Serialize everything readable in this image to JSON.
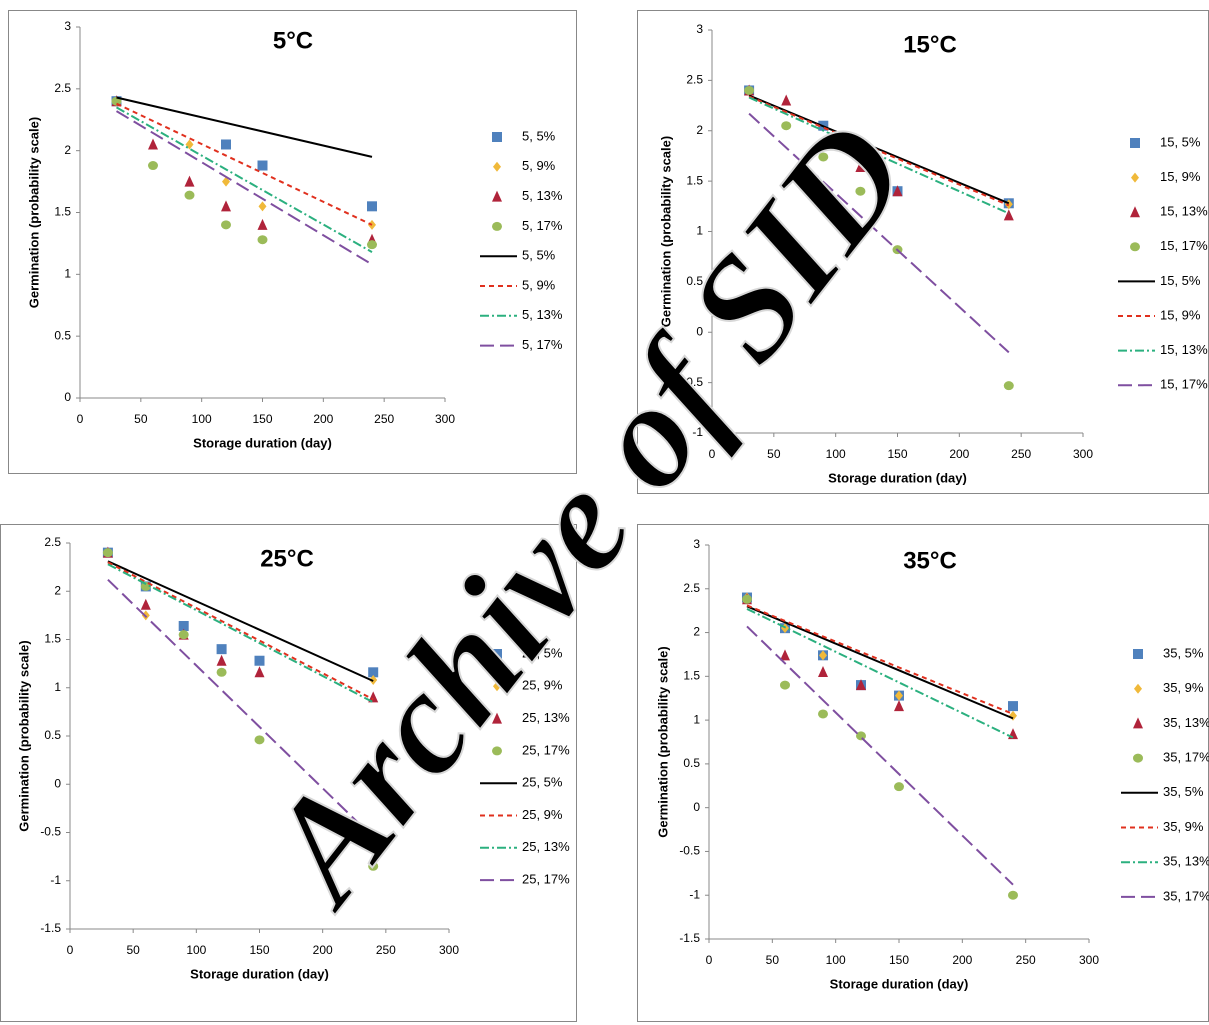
{
  "watermark": "Archive of SID",
  "chart_data": [
    {
      "type": "scatter",
      "title": "5°C",
      "x_label": "Storage duration (day)",
      "y_label": "Germination (probability scale)",
      "xlim": [
        0,
        300
      ],
      "xticks": [
        0,
        50,
        100,
        150,
        200,
        250,
        300
      ],
      "ylim": [
        0,
        3
      ],
      "yticks": [
        0,
        0.5,
        1,
        1.5,
        2,
        2.5,
        3
      ],
      "x": [
        30,
        60,
        90,
        120,
        150,
        240
      ],
      "series": [
        {
          "name": "5, 5%",
          "color": "#4f81bd",
          "marker": "square",
          "values": [
            2.4,
            null,
            null,
            2.05,
            1.88,
            1.55
          ]
        },
        {
          "name": "5, 9%",
          "color": "#f0b93a",
          "marker": "diamond",
          "values": [
            2.4,
            null,
            2.05,
            1.75,
            1.55,
            1.4
          ]
        },
        {
          "name": "5, 13%",
          "color": "#b0233a",
          "marker": "triangle",
          "values": [
            2.4,
            2.05,
            1.75,
            1.55,
            1.4,
            1.28
          ]
        },
        {
          "name": "5, 17%",
          "color": "#9bbb59",
          "marker": "circle",
          "values": [
            2.4,
            1.88,
            1.64,
            1.4,
            1.28,
            1.24
          ]
        },
        {
          "name": "5, 5%",
          "color": "#000000",
          "line": "solid",
          "x": [
            30,
            240
          ],
          "values": [
            2.43,
            1.95
          ]
        },
        {
          "name": "5, 9%",
          "color": "#e0301e",
          "line": "dash",
          "x": [
            30,
            240
          ],
          "values": [
            2.38,
            1.4
          ]
        },
        {
          "name": "5, 13%",
          "color": "#2bb07f",
          "line": "dashdot",
          "x": [
            30,
            240
          ],
          "values": [
            2.35,
            1.18
          ]
        },
        {
          "name": "5, 17%",
          "color": "#7f4fa0",
          "line": "longdash",
          "x": [
            30,
            240
          ],
          "values": [
            2.32,
            1.08
          ]
        }
      ]
    },
    {
      "type": "scatter",
      "title": "15°C",
      "x_label": "Storage duration (day)",
      "y_label": "Germination (probability scale)",
      "xlim": [
        0,
        300
      ],
      "xticks": [
        0,
        50,
        100,
        150,
        200,
        250,
        300
      ],
      "ylim": [
        -1,
        3
      ],
      "yticks": [
        -1,
        -0.5,
        0,
        0.5,
        1,
        1.5,
        2,
        2.5,
        3
      ],
      "x": [
        30,
        60,
        90,
        120,
        150,
        240
      ],
      "series": [
        {
          "name": "15, 5%",
          "color": "#4f81bd",
          "marker": "square",
          "values": [
            2.4,
            null,
            2.05,
            1.74,
            1.4,
            1.28
          ]
        },
        {
          "name": "15, 9%",
          "color": "#f0b93a",
          "marker": "diamond",
          "values": [
            2.4,
            null,
            null,
            null,
            null,
            1.27
          ]
        },
        {
          "name": "15, 13%",
          "color": "#b0233a",
          "marker": "triangle",
          "values": [
            2.4,
            2.3,
            1.86,
            1.64,
            1.4,
            1.16
          ]
        },
        {
          "name": "15, 17%",
          "color": "#9bbb59",
          "marker": "circle",
          "values": [
            2.4,
            2.05,
            1.74,
            1.4,
            0.82,
            -0.53
          ]
        },
        {
          "name": "15, 5%",
          "color": "#000000",
          "line": "solid",
          "x": [
            30,
            240
          ],
          "values": [
            2.35,
            1.28
          ]
        },
        {
          "name": "15, 9%",
          "color": "#e0301e",
          "line": "dash",
          "x": [
            30,
            240
          ],
          "values": [
            2.34,
            1.26
          ]
        },
        {
          "name": "15, 13%",
          "color": "#2bb07f",
          "line": "dashdot",
          "x": [
            30,
            240
          ],
          "values": [
            2.33,
            1.18
          ]
        },
        {
          "name": "15, 17%",
          "color": "#7f4fa0",
          "line": "longdash",
          "x": [
            30,
            240
          ],
          "values": [
            2.17,
            -0.2
          ]
        }
      ]
    },
    {
      "type": "scatter",
      "title": "25°C",
      "x_label": "Storage duration (day)",
      "y_label": "Germination (probability scale)",
      "xlim": [
        0,
        300
      ],
      "xticks": [
        0,
        50,
        100,
        150,
        200,
        250,
        300
      ],
      "ylim": [
        -1.5,
        2.5
      ],
      "yticks": [
        -1.5,
        -1,
        -0.5,
        0,
        0.5,
        1,
        1.5,
        2,
        2.5
      ],
      "x": [
        30,
        60,
        90,
        120,
        150,
        240
      ],
      "series": [
        {
          "name": "25, 5%",
          "color": "#4f81bd",
          "marker": "square",
          "values": [
            2.4,
            2.05,
            1.64,
            1.4,
            1.28,
            1.16
          ]
        },
        {
          "name": "25, 9%",
          "color": "#f0b93a",
          "marker": "diamond",
          "values": [
            2.4,
            1.75,
            null,
            null,
            null,
            1.08
          ]
        },
        {
          "name": "25, 13%",
          "color": "#b0233a",
          "marker": "triangle",
          "values": [
            2.4,
            1.86,
            1.55,
            1.28,
            1.16,
            0.9
          ]
        },
        {
          "name": "25, 17%",
          "color": "#9bbb59",
          "marker": "circle",
          "values": [
            2.4,
            2.05,
            1.55,
            1.16,
            0.46,
            -0.85
          ]
        },
        {
          "name": "25, 5%",
          "color": "#000000",
          "line": "solid",
          "x": [
            30,
            240
          ],
          "values": [
            2.31,
            1.07
          ]
        },
        {
          "name": "25, 9%",
          "color": "#e0301e",
          "line": "dash",
          "x": [
            30,
            240
          ],
          "values": [
            2.3,
            0.88
          ]
        },
        {
          "name": "25, 13%",
          "color": "#2bb07f",
          "line": "dashdot",
          "x": [
            30,
            240
          ],
          "values": [
            2.28,
            0.85
          ]
        },
        {
          "name": "25, 17%",
          "color": "#7f4fa0",
          "line": "longdash",
          "x": [
            30,
            240
          ],
          "values": [
            2.12,
            -0.55
          ]
        }
      ]
    },
    {
      "type": "scatter",
      "title": "35°C",
      "x_label": "Storage duration (day)",
      "y_label": "Germination (probability scale)",
      "xlim": [
        0,
        300
      ],
      "xticks": [
        0,
        50,
        100,
        150,
        200,
        250,
        300
      ],
      "ylim": [
        -1.5,
        3
      ],
      "yticks": [
        -1.5,
        -1,
        -0.5,
        0,
        0.5,
        1,
        1.5,
        2,
        2.5,
        3
      ],
      "x": [
        30,
        60,
        90,
        120,
        150,
        240
      ],
      "series": [
        {
          "name": "35, 5%",
          "color": "#4f81bd",
          "marker": "square",
          "values": [
            2.4,
            2.05,
            1.74,
            1.4,
            1.28,
            1.16
          ]
        },
        {
          "name": "35, 9%",
          "color": "#f0b93a",
          "marker": "diamond",
          "values": [
            2.4,
            2.05,
            1.74,
            null,
            1.28,
            1.05
          ]
        },
        {
          "name": "35, 13%",
          "color": "#b0233a",
          "marker": "triangle",
          "values": [
            2.38,
            1.74,
            1.55,
            1.4,
            1.16,
            0.84
          ]
        },
        {
          "name": "35, 17%",
          "color": "#9bbb59",
          "marker": "circle",
          "values": [
            2.38,
            1.4,
            1.07,
            0.82,
            0.24,
            -1.0
          ]
        },
        {
          "name": "35, 5%",
          "color": "#000000",
          "line": "solid",
          "x": [
            30,
            240
          ],
          "values": [
            2.3,
            1.02
          ]
        },
        {
          "name": "35, 9%",
          "color": "#e0301e",
          "line": "dash",
          "x": [
            30,
            240
          ],
          "values": [
            2.31,
            1.07
          ]
        },
        {
          "name": "35, 13%",
          "color": "#2bb07f",
          "line": "dashdot",
          "x": [
            30,
            240
          ],
          "values": [
            2.27,
            0.8
          ]
        },
        {
          "name": "35, 17%",
          "color": "#7f4fa0",
          "line": "longdash",
          "x": [
            30,
            240
          ],
          "values": [
            2.07,
            -0.88
          ]
        }
      ]
    }
  ]
}
